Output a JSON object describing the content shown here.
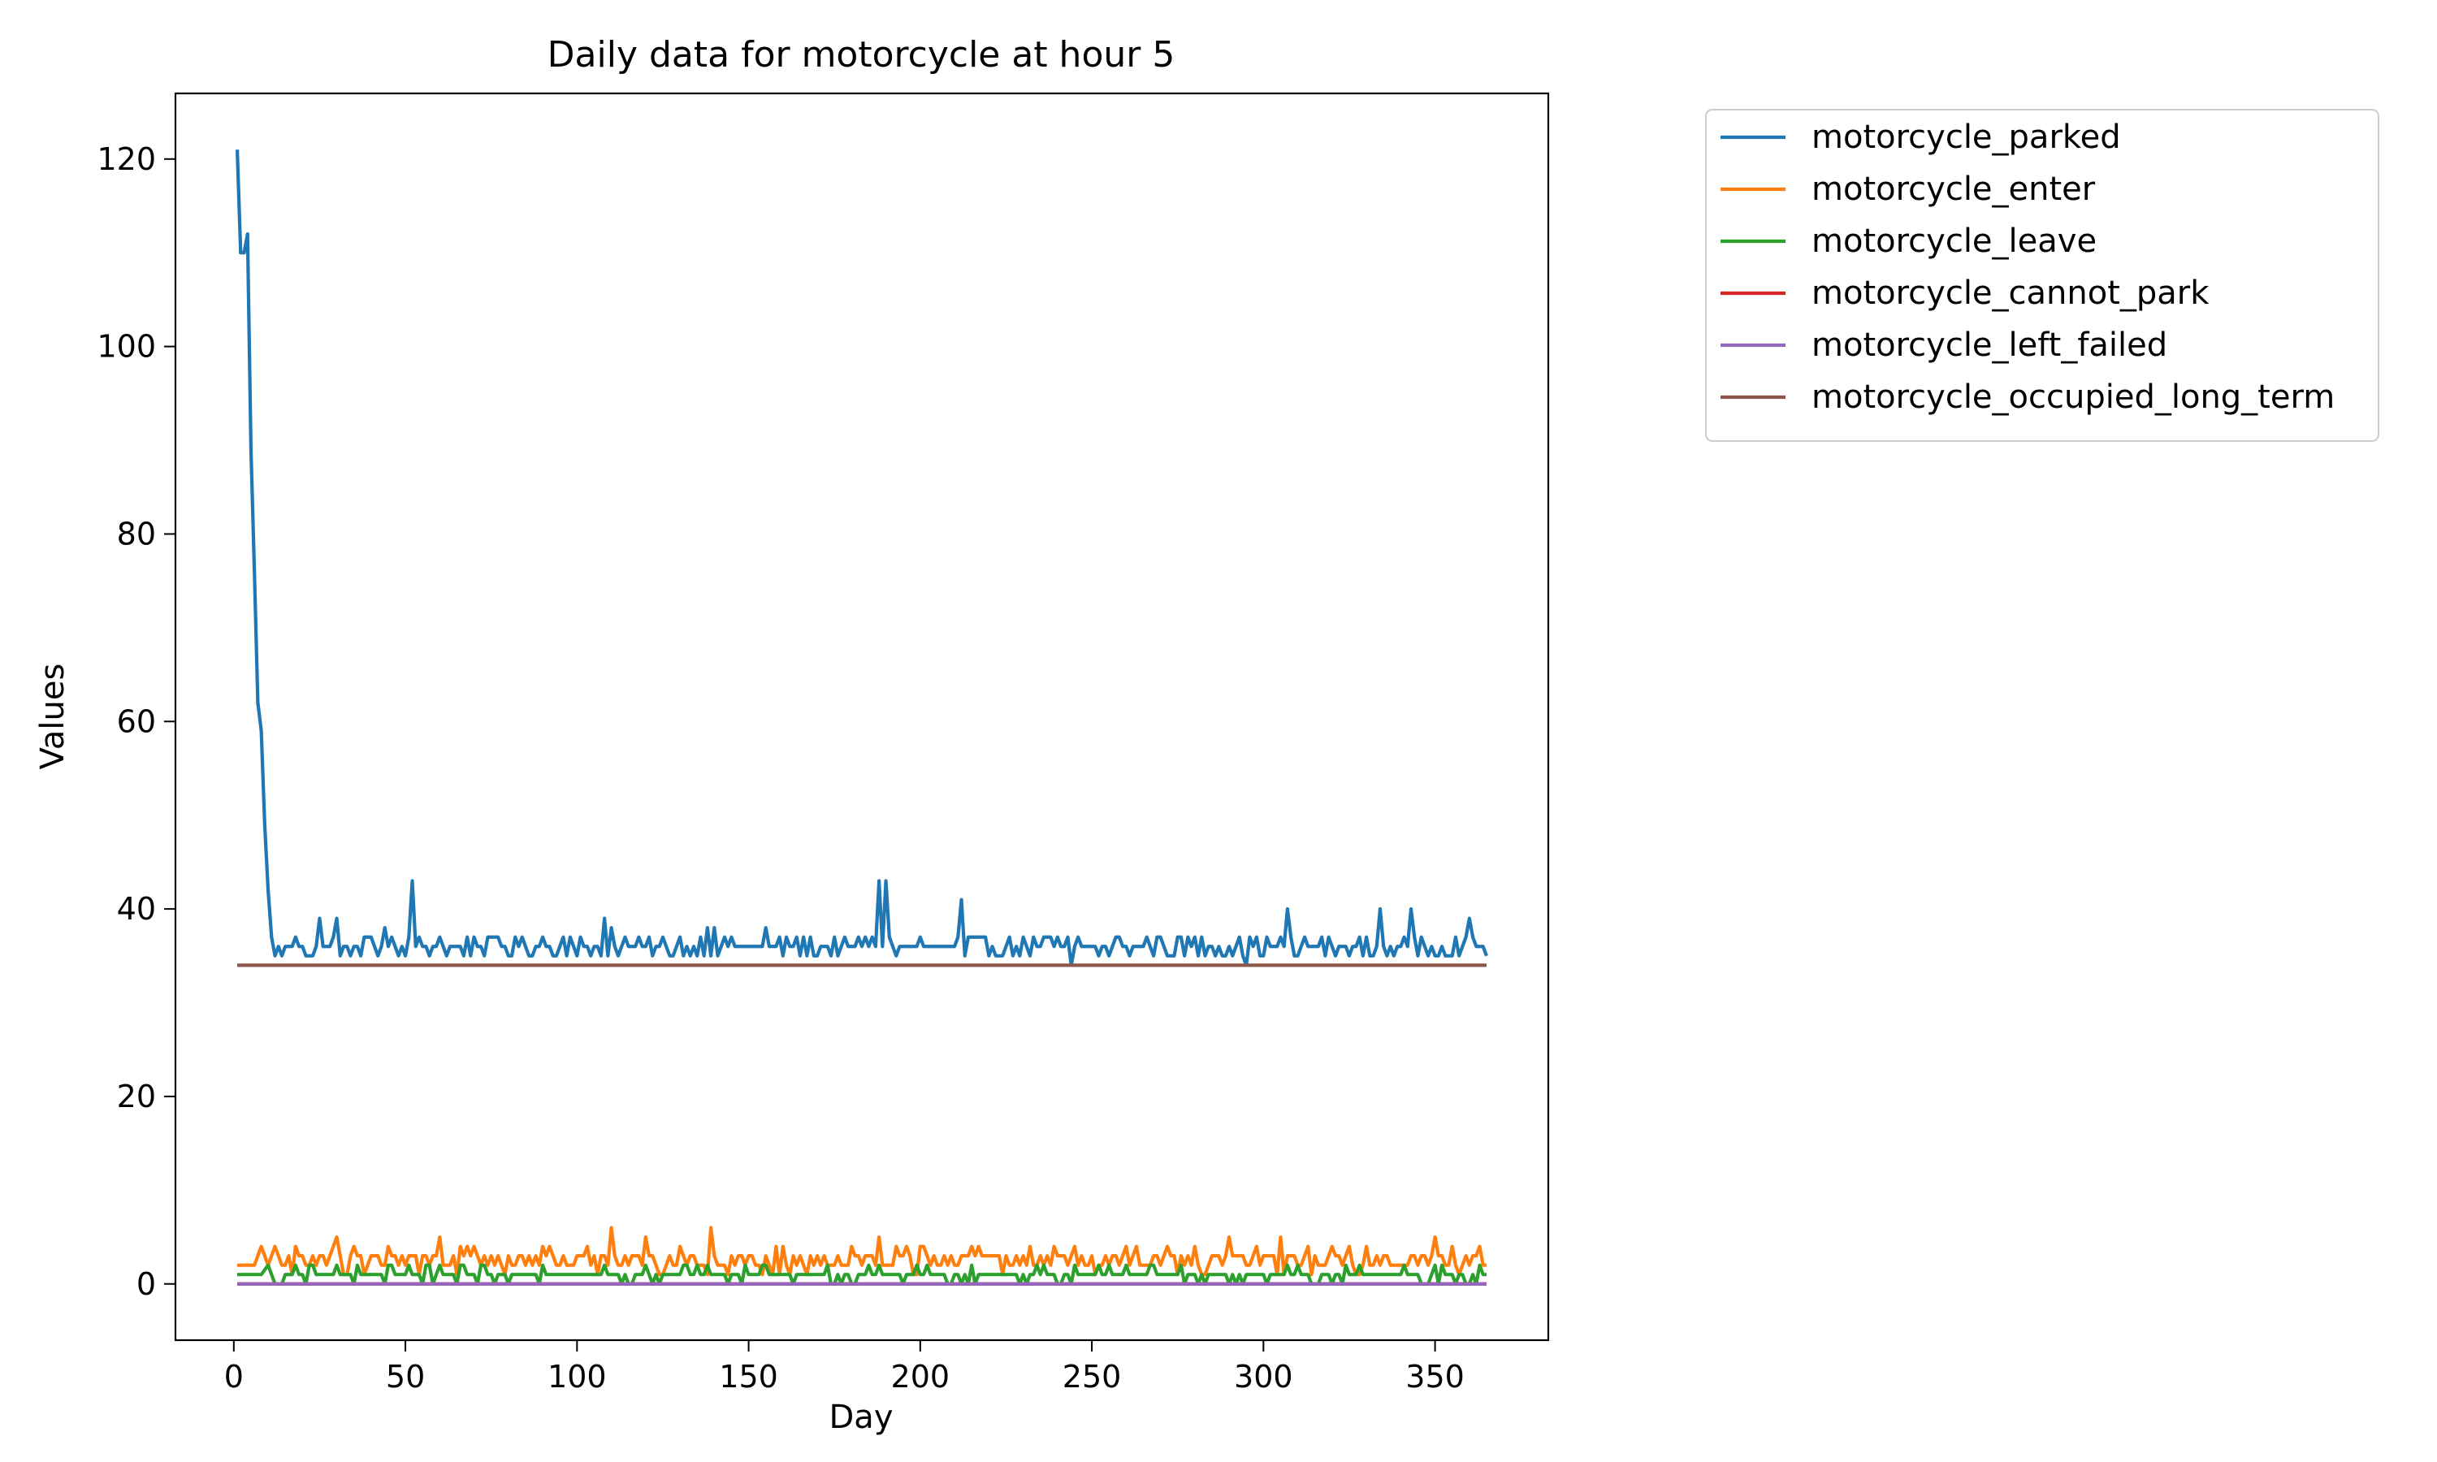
{
  "chart_data": {
    "type": "line",
    "title": "Daily data for motorcycle at hour 5",
    "xlabel": "Day",
    "ylabel": "Values",
    "xlim": [
      -17,
      383
    ],
    "ylim": [
      -6,
      127
    ],
    "xticks": [
      0,
      50,
      100,
      150,
      200,
      250,
      300,
      350
    ],
    "yticks": [
      0,
      20,
      40,
      60,
      80,
      100,
      120
    ],
    "grid": false,
    "legend_placement": "outside-top-right",
    "day_range": [
      1,
      365
    ],
    "series": [
      {
        "name": "motorcycle_parked",
        "color": "#1f77b4",
        "baseline": 36,
        "points": [
          [
            1,
            121
          ],
          [
            2,
            110
          ],
          [
            3,
            110
          ],
          [
            4,
            112
          ],
          [
            5,
            89
          ],
          [
            6,
            76
          ],
          [
            7,
            62
          ],
          [
            8,
            59
          ],
          [
            9,
            49
          ],
          [
            10,
            42
          ],
          [
            11,
            37
          ],
          [
            12,
            35
          ],
          [
            15,
            36
          ],
          [
            20,
            36
          ],
          [
            22,
            35
          ],
          [
            25,
            39
          ],
          [
            27,
            36
          ],
          [
            30,
            39
          ],
          [
            34,
            35
          ],
          [
            40,
            37
          ],
          [
            44,
            38
          ],
          [
            48,
            35
          ],
          [
            52,
            43
          ],
          [
            53,
            36
          ],
          [
            60,
            37
          ],
          [
            62,
            35
          ],
          [
            70,
            37
          ],
          [
            75,
            37
          ],
          [
            90,
            37
          ],
          [
            96,
            37
          ],
          [
            100,
            35
          ],
          [
            107,
            35
          ],
          [
            108,
            39
          ],
          [
            109,
            35
          ],
          [
            110,
            38
          ],
          [
            114,
            37
          ],
          [
            130,
            37
          ],
          [
            138,
            38
          ],
          [
            140,
            38
          ],
          [
            155,
            38
          ],
          [
            170,
            35
          ],
          [
            186,
            37
          ],
          [
            188,
            43
          ],
          [
            190,
            43
          ],
          [
            192,
            36
          ],
          [
            200,
            37
          ],
          [
            212,
            41
          ],
          [
            213,
            35
          ],
          [
            215,
            37
          ],
          [
            240,
            37
          ],
          [
            244,
            34
          ],
          [
            260,
            36
          ],
          [
            270,
            37
          ],
          [
            280,
            37
          ],
          [
            295,
            34
          ],
          [
            305,
            37
          ],
          [
            307,
            40
          ],
          [
            309,
            35
          ],
          [
            320,
            36
          ],
          [
            332,
            35
          ],
          [
            334,
            40
          ],
          [
            336,
            35
          ],
          [
            343,
            40
          ],
          [
            345,
            35
          ],
          [
            360,
            39
          ],
          [
            362,
            36
          ],
          [
            365,
            35
          ]
        ]
      },
      {
        "name": "motorcycle_enter",
        "color": "#ff7f0e",
        "baseline": 2,
        "points": [
          [
            1,
            2
          ],
          [
            6,
            2
          ],
          [
            8,
            4
          ],
          [
            10,
            2
          ],
          [
            12,
            4
          ],
          [
            16,
            3
          ],
          [
            18,
            4
          ],
          [
            25,
            3
          ],
          [
            29,
            4
          ],
          [
            30,
            5
          ],
          [
            35,
            4
          ],
          [
            45,
            4
          ],
          [
            60,
            5
          ],
          [
            70,
            4
          ],
          [
            90,
            4
          ],
          [
            100,
            3
          ],
          [
            110,
            6
          ],
          [
            111,
            3
          ],
          [
            120,
            5
          ],
          [
            130,
            4
          ],
          [
            139,
            6
          ],
          [
            140,
            3
          ],
          [
            160,
            4
          ],
          [
            180,
            4
          ],
          [
            188,
            5
          ],
          [
            200,
            4
          ],
          [
            215,
            4
          ],
          [
            230,
            3
          ],
          [
            245,
            4
          ],
          [
            260,
            4
          ],
          [
            280,
            4
          ],
          [
            290,
            5
          ],
          [
            305,
            5
          ],
          [
            320,
            4
          ],
          [
            330,
            4
          ],
          [
            350,
            5
          ],
          [
            355,
            4
          ],
          [
            360,
            2
          ],
          [
            363,
            4
          ],
          [
            365,
            2
          ]
        ]
      },
      {
        "name": "motorcycle_leave",
        "color": "#2ca02c",
        "baseline": 1,
        "points": [
          [
            1,
            1
          ],
          [
            8,
            1
          ],
          [
            10,
            2
          ],
          [
            12,
            0
          ],
          [
            15,
            1
          ],
          [
            18,
            2
          ],
          [
            25,
            1
          ],
          [
            30,
            2
          ],
          [
            40,
            1
          ],
          [
            50,
            1
          ],
          [
            60,
            2
          ],
          [
            70,
            1
          ],
          [
            90,
            2
          ],
          [
            108,
            2
          ],
          [
            110,
            1
          ],
          [
            120,
            2
          ],
          [
            135,
            2
          ],
          [
            150,
            1
          ],
          [
            170,
            1
          ],
          [
            185,
            2
          ],
          [
            200,
            1
          ],
          [
            215,
            2
          ],
          [
            230,
            1
          ],
          [
            245,
            2
          ],
          [
            260,
            2
          ],
          [
            280,
            1
          ],
          [
            300,
            1
          ],
          [
            310,
            2
          ],
          [
            330,
            1
          ],
          [
            350,
            2
          ],
          [
            360,
            0
          ],
          [
            363,
            2
          ],
          [
            365,
            1
          ]
        ]
      },
      {
        "name": "motorcycle_cannot_park",
        "color": "#d62728",
        "baseline": 0,
        "points": [
          [
            1,
            0
          ],
          [
            365,
            0
          ]
        ]
      },
      {
        "name": "motorcycle_left_failed",
        "color": "#9467bd",
        "baseline": 0,
        "points": [
          [
            1,
            0
          ],
          [
            365,
            0
          ]
        ]
      },
      {
        "name": "motorcycle_occupied_long_term",
        "color": "#8c564b",
        "baseline": 34,
        "points": [
          [
            1,
            34
          ],
          [
            365,
            34
          ]
        ]
      }
    ]
  }
}
